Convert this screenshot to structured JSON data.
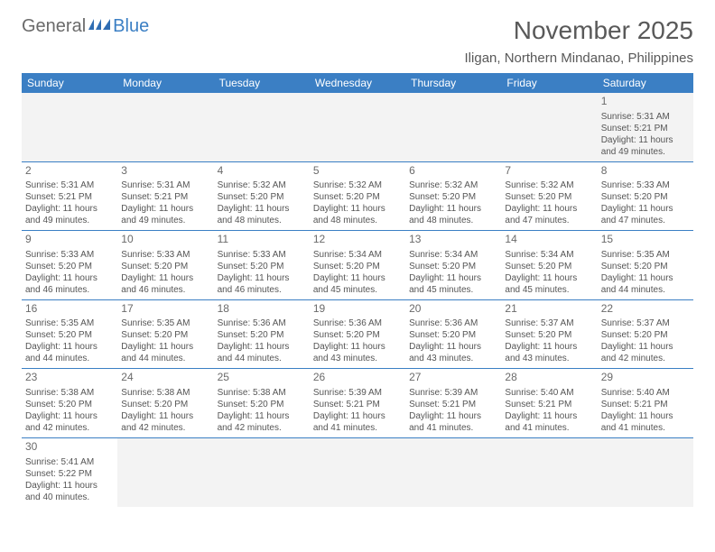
{
  "logo": {
    "general": "General",
    "blue": "Blue"
  },
  "title": "November 2025",
  "location": "Iligan, Northern Mindanao, Philippines",
  "colors": {
    "header_bg": "#3b7fc4",
    "header_fg": "#ffffff",
    "border": "#3b7fc4",
    "text": "#555555"
  },
  "day_headers": [
    "Sunday",
    "Monday",
    "Tuesday",
    "Wednesday",
    "Thursday",
    "Friday",
    "Saturday"
  ],
  "weeks": [
    [
      null,
      null,
      null,
      null,
      null,
      null,
      {
        "n": "1",
        "sr": "Sunrise: 5:31 AM",
        "ss": "Sunset: 5:21 PM",
        "dl1": "Daylight: 11 hours",
        "dl2": "and 49 minutes."
      }
    ],
    [
      {
        "n": "2",
        "sr": "Sunrise: 5:31 AM",
        "ss": "Sunset: 5:21 PM",
        "dl1": "Daylight: 11 hours",
        "dl2": "and 49 minutes."
      },
      {
        "n": "3",
        "sr": "Sunrise: 5:31 AM",
        "ss": "Sunset: 5:21 PM",
        "dl1": "Daylight: 11 hours",
        "dl2": "and 49 minutes."
      },
      {
        "n": "4",
        "sr": "Sunrise: 5:32 AM",
        "ss": "Sunset: 5:20 PM",
        "dl1": "Daylight: 11 hours",
        "dl2": "and 48 minutes."
      },
      {
        "n": "5",
        "sr": "Sunrise: 5:32 AM",
        "ss": "Sunset: 5:20 PM",
        "dl1": "Daylight: 11 hours",
        "dl2": "and 48 minutes."
      },
      {
        "n": "6",
        "sr": "Sunrise: 5:32 AM",
        "ss": "Sunset: 5:20 PM",
        "dl1": "Daylight: 11 hours",
        "dl2": "and 48 minutes."
      },
      {
        "n": "7",
        "sr": "Sunrise: 5:32 AM",
        "ss": "Sunset: 5:20 PM",
        "dl1": "Daylight: 11 hours",
        "dl2": "and 47 minutes."
      },
      {
        "n": "8",
        "sr": "Sunrise: 5:33 AM",
        "ss": "Sunset: 5:20 PM",
        "dl1": "Daylight: 11 hours",
        "dl2": "and 47 minutes."
      }
    ],
    [
      {
        "n": "9",
        "sr": "Sunrise: 5:33 AM",
        "ss": "Sunset: 5:20 PM",
        "dl1": "Daylight: 11 hours",
        "dl2": "and 46 minutes."
      },
      {
        "n": "10",
        "sr": "Sunrise: 5:33 AM",
        "ss": "Sunset: 5:20 PM",
        "dl1": "Daylight: 11 hours",
        "dl2": "and 46 minutes."
      },
      {
        "n": "11",
        "sr": "Sunrise: 5:33 AM",
        "ss": "Sunset: 5:20 PM",
        "dl1": "Daylight: 11 hours",
        "dl2": "and 46 minutes."
      },
      {
        "n": "12",
        "sr": "Sunrise: 5:34 AM",
        "ss": "Sunset: 5:20 PM",
        "dl1": "Daylight: 11 hours",
        "dl2": "and 45 minutes."
      },
      {
        "n": "13",
        "sr": "Sunrise: 5:34 AM",
        "ss": "Sunset: 5:20 PM",
        "dl1": "Daylight: 11 hours",
        "dl2": "and 45 minutes."
      },
      {
        "n": "14",
        "sr": "Sunrise: 5:34 AM",
        "ss": "Sunset: 5:20 PM",
        "dl1": "Daylight: 11 hours",
        "dl2": "and 45 minutes."
      },
      {
        "n": "15",
        "sr": "Sunrise: 5:35 AM",
        "ss": "Sunset: 5:20 PM",
        "dl1": "Daylight: 11 hours",
        "dl2": "and 44 minutes."
      }
    ],
    [
      {
        "n": "16",
        "sr": "Sunrise: 5:35 AM",
        "ss": "Sunset: 5:20 PM",
        "dl1": "Daylight: 11 hours",
        "dl2": "and 44 minutes."
      },
      {
        "n": "17",
        "sr": "Sunrise: 5:35 AM",
        "ss": "Sunset: 5:20 PM",
        "dl1": "Daylight: 11 hours",
        "dl2": "and 44 minutes."
      },
      {
        "n": "18",
        "sr": "Sunrise: 5:36 AM",
        "ss": "Sunset: 5:20 PM",
        "dl1": "Daylight: 11 hours",
        "dl2": "and 44 minutes."
      },
      {
        "n": "19",
        "sr": "Sunrise: 5:36 AM",
        "ss": "Sunset: 5:20 PM",
        "dl1": "Daylight: 11 hours",
        "dl2": "and 43 minutes."
      },
      {
        "n": "20",
        "sr": "Sunrise: 5:36 AM",
        "ss": "Sunset: 5:20 PM",
        "dl1": "Daylight: 11 hours",
        "dl2": "and 43 minutes."
      },
      {
        "n": "21",
        "sr": "Sunrise: 5:37 AM",
        "ss": "Sunset: 5:20 PM",
        "dl1": "Daylight: 11 hours",
        "dl2": "and 43 minutes."
      },
      {
        "n": "22",
        "sr": "Sunrise: 5:37 AM",
        "ss": "Sunset: 5:20 PM",
        "dl1": "Daylight: 11 hours",
        "dl2": "and 42 minutes."
      }
    ],
    [
      {
        "n": "23",
        "sr": "Sunrise: 5:38 AM",
        "ss": "Sunset: 5:20 PM",
        "dl1": "Daylight: 11 hours",
        "dl2": "and 42 minutes."
      },
      {
        "n": "24",
        "sr": "Sunrise: 5:38 AM",
        "ss": "Sunset: 5:20 PM",
        "dl1": "Daylight: 11 hours",
        "dl2": "and 42 minutes."
      },
      {
        "n": "25",
        "sr": "Sunrise: 5:38 AM",
        "ss": "Sunset: 5:20 PM",
        "dl1": "Daylight: 11 hours",
        "dl2": "and 42 minutes."
      },
      {
        "n": "26",
        "sr": "Sunrise: 5:39 AM",
        "ss": "Sunset: 5:21 PM",
        "dl1": "Daylight: 11 hours",
        "dl2": "and 41 minutes."
      },
      {
        "n": "27",
        "sr": "Sunrise: 5:39 AM",
        "ss": "Sunset: 5:21 PM",
        "dl1": "Daylight: 11 hours",
        "dl2": "and 41 minutes."
      },
      {
        "n": "28",
        "sr": "Sunrise: 5:40 AM",
        "ss": "Sunset: 5:21 PM",
        "dl1": "Daylight: 11 hours",
        "dl2": "and 41 minutes."
      },
      {
        "n": "29",
        "sr": "Sunrise: 5:40 AM",
        "ss": "Sunset: 5:21 PM",
        "dl1": "Daylight: 11 hours",
        "dl2": "and 41 minutes."
      }
    ],
    [
      {
        "n": "30",
        "sr": "Sunrise: 5:41 AM",
        "ss": "Sunset: 5:22 PM",
        "dl1": "Daylight: 11 hours",
        "dl2": "and 40 minutes."
      },
      null,
      null,
      null,
      null,
      null,
      null
    ]
  ]
}
